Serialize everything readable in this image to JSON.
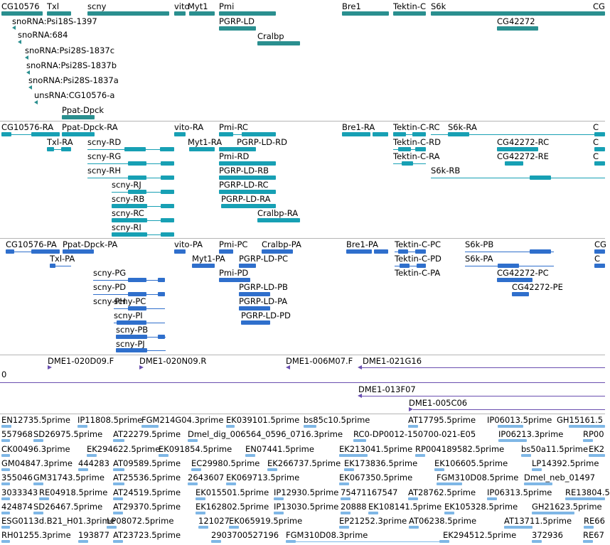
{
  "colors": {
    "gene": "#2a8f8f",
    "rna": "#17a0b4",
    "protein": "#2f6fcc",
    "clone": "#6a4fb0",
    "est": "#7fb7e6"
  },
  "genes": [
    {
      "label": "CG10576"
    },
    {
      "label": "Txl"
    },
    {
      "label": "scny"
    },
    {
      "label": "vito"
    },
    {
      "label": "Myt1"
    },
    {
      "label": "Pmi"
    },
    {
      "label": "Bre1"
    },
    {
      "label": "Tektin-C"
    },
    {
      "label": "S6k"
    },
    {
      "label": "CG"
    },
    {
      "label": "PGRP-LD"
    },
    {
      "label": "CG42272"
    },
    {
      "label": "snoRNA:Psi18S-1397"
    },
    {
      "label": "snoRNA:684"
    },
    {
      "label": "Cralbp"
    },
    {
      "label": "snoRNA:Psi28S-1837c"
    },
    {
      "label": "snoRNA:Psi28S-1837b"
    },
    {
      "label": "snoRNA:Psi28S-1837a"
    },
    {
      "label": "unsRNA:CG10576-a"
    },
    {
      "label": "Ppat-Dpck"
    }
  ],
  "transcripts": [
    {
      "label": "CG10576-RA"
    },
    {
      "label": "Ppat-Dpck-RA"
    },
    {
      "label": "vito-RA"
    },
    {
      "label": "Pmi-RC"
    },
    {
      "label": "Bre1-RA"
    },
    {
      "label": "Tektin-C-RC"
    },
    {
      "label": "S6k-RA"
    },
    {
      "label": "C"
    },
    {
      "label": "Txl-RA"
    },
    {
      "label": "scny-RD"
    },
    {
      "label": "Myt1-RA"
    },
    {
      "label": "PGRP-LD-RD"
    },
    {
      "label": "Tektin-C-RD"
    },
    {
      "label": "CG42272-RC"
    },
    {
      "label": "C"
    },
    {
      "label": "scny-RG"
    },
    {
      "label": "Pmi-RD"
    },
    {
      "label": "Tektin-C-RA"
    },
    {
      "label": "CG42272-RE"
    },
    {
      "label": "C"
    },
    {
      "label": "scny-RH"
    },
    {
      "label": "PGRP-LD-RB"
    },
    {
      "label": "S6k-RB"
    },
    {
      "label": "scny-RJ"
    },
    {
      "label": "PGRP-LD-RC"
    },
    {
      "label": "scny-RB"
    },
    {
      "label": "PGRP-LD-RA"
    },
    {
      "label": "scny-RC"
    },
    {
      "label": "Cralbp-RA"
    },
    {
      "label": "scny-RI"
    }
  ],
  "proteins": [
    {
      "label": "CG10576-PA"
    },
    {
      "label": "Ppat-Dpck-PA"
    },
    {
      "label": "vito-PA"
    },
    {
      "label": "Pmi-PC"
    },
    {
      "label": "Cralbp-PA"
    },
    {
      "label": "Bre1-PA"
    },
    {
      "label": "Tektin-C-PC"
    },
    {
      "label": "S6k-PB"
    },
    {
      "label": "CG"
    },
    {
      "label": "Txl-PA"
    },
    {
      "label": "Myt1-PA"
    },
    {
      "label": "PGRP-LD-PC"
    },
    {
      "label": "Tektin-C-PD"
    },
    {
      "label": "S6k-PA"
    },
    {
      "label": "C"
    },
    {
      "label": "scny-PG"
    },
    {
      "label": "Pmi-PD"
    },
    {
      "label": "Tektin-C-PA"
    },
    {
      "label": "CG42272-PC"
    },
    {
      "label": "scny-PD"
    },
    {
      "label": "PGRP-LD-PB"
    },
    {
      "label": "CG42272-PE"
    },
    {
      "label": "scny-PH"
    },
    {
      "label": "scny-PC"
    },
    {
      "label": "PGRP-LD-PA"
    },
    {
      "label": "scny-PI"
    },
    {
      "label": "PGRP-LD-PD"
    },
    {
      "label": "scny-PB"
    },
    {
      "label": "scny-PJ"
    }
  ],
  "clones": [
    {
      "label": "DME1-020D09.F"
    },
    {
      "label": "DME1-020N09.R"
    },
    {
      "label": "DME1-006M07.F"
    },
    {
      "label": "DME1-021G16"
    },
    {
      "label": "0"
    },
    {
      "label": "DME1-013F07"
    },
    {
      "label": "DME1-005C06"
    }
  ],
  "ests": [
    {
      "label": "EN12735.5prime"
    },
    {
      "label": "IP11808.5prime"
    },
    {
      "label": "FGM214G04.3prime"
    },
    {
      "label": "EK039101.5prime"
    },
    {
      "label": "bs85c10.5prime"
    },
    {
      "label": "AT17795.5prime"
    },
    {
      "label": "IP06013.5prime"
    },
    {
      "label": "GH15161.5"
    },
    {
      "label": "557968"
    },
    {
      "label": "SD26975.5prime"
    },
    {
      "label": "AT22279.5prime"
    },
    {
      "label": "Dmel_dig_006564_0596_0716.3prime"
    },
    {
      "label": "RC0-DP0012-150700-021-E05"
    },
    {
      "label": "IP06213.3prime"
    },
    {
      "label": "RP00"
    },
    {
      "label": "CK00496.3prime"
    },
    {
      "label": "EK294622.5prime"
    },
    {
      "label": "EK091854.5prime"
    },
    {
      "label": "EN07441.5prime"
    },
    {
      "label": "EK213041.5prime"
    },
    {
      "label": "RP004189582.5prime"
    },
    {
      "label": "bs50a11.5prime"
    },
    {
      "label": "EK2"
    },
    {
      "label": "GM04847.3prime"
    },
    {
      "label": "444283"
    },
    {
      "label": "AT09589.5prime"
    },
    {
      "label": "EC29980.5prime"
    },
    {
      "label": "EK266737.5prime"
    },
    {
      "label": "EK173836.5prime"
    },
    {
      "label": "EK106605.5prime"
    },
    {
      "label": "LP14392.5prime"
    },
    {
      "label": "355046"
    },
    {
      "label": "GM31743.5prime"
    },
    {
      "label": "AT25536.5prime"
    },
    {
      "label": "2643607"
    },
    {
      "label": "EK069713.5prime"
    },
    {
      "label": "EK067350.5prime"
    },
    {
      "label": "FGM310D08.5prime"
    },
    {
      "label": "Dmel_neb_01497"
    },
    {
      "label": "3033343"
    },
    {
      "label": "RE04918.5prime"
    },
    {
      "label": "AT24519.5prime"
    },
    {
      "label": "EK015501.5prime"
    },
    {
      "label": "IP12930.5prime"
    },
    {
      "label": "75471167547"
    },
    {
      "label": "AT28762.5prime"
    },
    {
      "label": "IP06313.5prime"
    },
    {
      "label": "RE13804.5"
    },
    {
      "label": "424874"
    },
    {
      "label": "SD26467.5prime"
    },
    {
      "label": "AT29370.5prime"
    },
    {
      "label": "EK162802.5prime"
    },
    {
      "label": "IP13030.5prime"
    },
    {
      "label": "20888"
    },
    {
      "label": "EK108141.5prime"
    },
    {
      "label": "EK105328.5prime"
    },
    {
      "label": "GH21623.5prime"
    },
    {
      "label": "ESG0113d.B21_H01.3prime"
    },
    {
      "label": "LP08072.5prime"
    },
    {
      "label": "121027"
    },
    {
      "label": "EK065919.5prime"
    },
    {
      "label": "EP21252.3prime"
    },
    {
      "label": "AT06238.5prime"
    },
    {
      "label": "AT13711.5prime"
    },
    {
      "label": "RE66"
    },
    {
      "label": "RH01255.3prime"
    },
    {
      "label": "193877"
    },
    {
      "label": "AT23723.5prime"
    },
    {
      "label": "2903700527196"
    },
    {
      "label": "FGM310D08.3prime"
    },
    {
      "label": "EK294512.5prime"
    },
    {
      "label": "372936"
    },
    {
      "label": "RE67"
    }
  ]
}
